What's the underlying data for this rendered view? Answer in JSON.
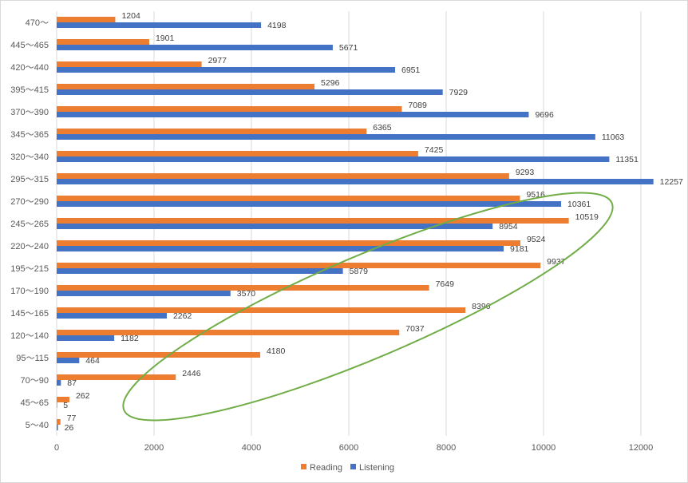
{
  "chart_data": {
    "type": "bar",
    "orientation": "horizontal",
    "categories": [
      "5～40",
      "45～65",
      "70～90",
      "95～115",
      "120～140",
      "145～165",
      "170～190",
      "195～215",
      "220～240",
      "245～265",
      "270～290",
      "295～315",
      "320～340",
      "345～365",
      "370～390",
      "395～415",
      "420～440",
      "445～465",
      "470～"
    ],
    "series": [
      {
        "name": "Reading",
        "color": "#ED7D31",
        "values": [
          77,
          262,
          2446,
          4180,
          7037,
          8396,
          7649,
          9937,
          9524,
          10519,
          9516,
          9293,
          7425,
          6365,
          7089,
          5296,
          2977,
          1901,
          1204
        ]
      },
      {
        "name": "Listening",
        "color": "#4472C4",
        "values": [
          26,
          5,
          87,
          464,
          1182,
          2262,
          3570,
          5879,
          9181,
          8954,
          10361,
          12257,
          11351,
          11063,
          9696,
          7929,
          6951,
          5671,
          4198
        ]
      }
    ],
    "xlim": [
      0,
      12000
    ],
    "xticks": [
      0,
      2000,
      4000,
      6000,
      8000,
      10000,
      12000
    ],
    "grid": true,
    "legend_position": "bottom",
    "annotation": {
      "shape": "ellipse",
      "color": "#70AD47"
    }
  }
}
